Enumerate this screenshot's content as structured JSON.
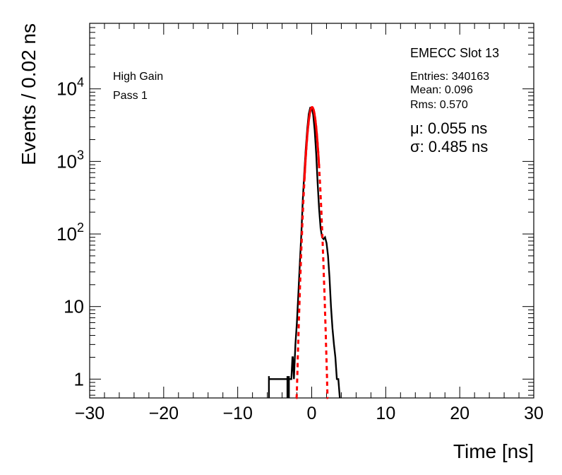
{
  "chart_data": {
    "type": "line",
    "title": "",
    "xlabel": "Time [ns]",
    "ylabel": "Events / 0.02 ns",
    "xlim": [
      -30,
      30
    ],
    "ylim": [
      0.55,
      80000
    ],
    "yscale": "log",
    "grid": false,
    "x_ticks": [
      -30,
      -20,
      -10,
      0,
      10,
      20,
      30
    ],
    "x_tick_labels": [
      "−30",
      "−20",
      "−10",
      "0",
      "10",
      "20",
      "30"
    ],
    "y_ticks": [
      1,
      10,
      100,
      1000,
      10000
    ],
    "y_tick_labels": [
      {
        "base": "1",
        "exp": ""
      },
      {
        "base": "10",
        "exp": ""
      },
      {
        "base": "10",
        "exp": "2"
      },
      {
        "base": "10",
        "exp": "3"
      },
      {
        "base": "10",
        "exp": "4"
      }
    ],
    "annotations": {
      "gain": "High Gain",
      "pass": "Pass 1",
      "slot": "EMECC Slot 13",
      "entries": "Entries: 340163",
      "mean": "Mean: 0.096",
      "rms": "Rms: 0.570",
      "mu": "μ: 0.055 ns",
      "sigma": "σ: 0.485 ns"
    },
    "series": [
      {
        "type": "histogram",
        "color": "#000000",
        "x": [
          -5.8,
          -5.75,
          -3.3,
          -3.25,
          -3.1,
          -3.05,
          -2.8,
          -2.75,
          -2.6,
          -2.55,
          -2.4,
          -2.2,
          -2.0,
          -1.8,
          -1.6,
          -1.4,
          -1.2,
          -1.0,
          -0.8,
          -0.6,
          -0.4,
          -0.2,
          0.0,
          0.2,
          0.4,
          0.6,
          0.8,
          1.0,
          1.2,
          1.4,
          1.6,
          1.8,
          2.0,
          2.2,
          2.4,
          2.6,
          2.8,
          3.0,
          3.2,
          3.4,
          3.6,
          3.8
        ],
        "y": [
          1,
          1,
          1,
          1,
          1,
          1,
          1,
          1,
          2,
          2,
          1,
          3,
          6,
          15,
          40,
          100,
          300,
          700,
          1500,
          2800,
          4500,
          5500,
          5500,
          4400,
          2700,
          1300,
          500,
          220,
          120,
          90,
          85,
          90,
          75,
          50,
          25,
          10,
          5,
          3,
          2,
          1,
          1,
          0
        ]
      },
      {
        "type": "gaussian-fit",
        "color": "#ff0000",
        "amplitude": 5600,
        "mu": 0.055,
        "sigma": 0.485,
        "fit_range": [
          -1.0,
          1.0
        ],
        "extrapolated_range": [
          -2.1,
          2.2
        ]
      }
    ]
  }
}
